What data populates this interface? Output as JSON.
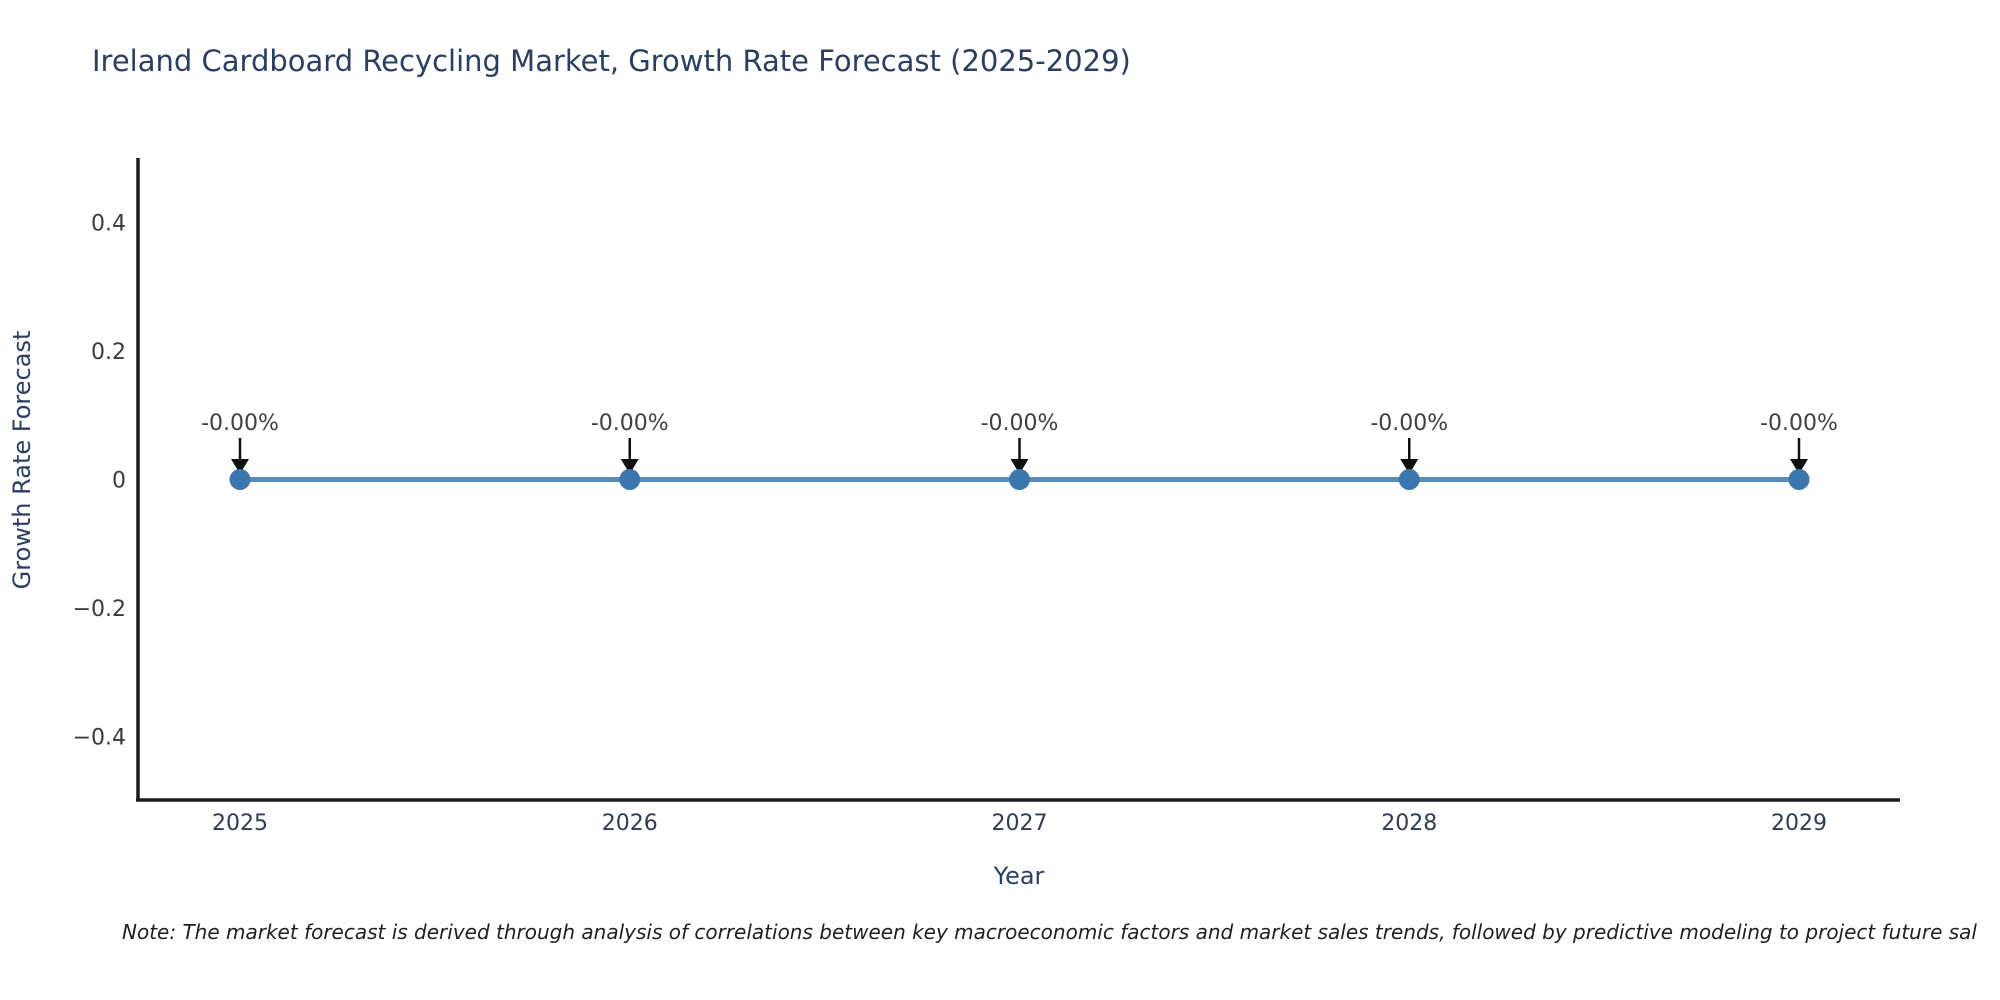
{
  "title": "Ireland Cardboard Recycling Market, Growth Rate Forecast (2025-2029)",
  "note": "Note: The market forecast is derived through analysis of correlations between key macroeconomic factors and market sales trends, followed by predictive modeling to project future sal",
  "chart_data": {
    "type": "line",
    "title": "Ireland Cardboard Recycling Market, Growth Rate Forecast (2025-2029)",
    "xlabel": "Year",
    "ylabel": "Growth Rate Forecast",
    "x": [
      2025,
      2026,
      2027,
      2028,
      2029
    ],
    "series": [
      {
        "name": "Growth Rate Forecast",
        "values": [
          0,
          0,
          0,
          0,
          0
        ],
        "point_labels": [
          "-0.00%",
          "-0.00%",
          "-0.00%",
          "-0.00%",
          "-0.00%"
        ]
      }
    ],
    "xtick_labels": [
      "2025",
      "2026",
      "2027",
      "2028",
      "2029"
    ],
    "ytick_values": [
      0.4,
      0.2,
      0,
      -0.2,
      -0.4
    ],
    "ytick_labels": [
      "0.4",
      "0.2",
      "0",
      "−0.2",
      "−0.4"
    ],
    "ylim": [
      -0.5,
      0.5
    ],
    "grid": false,
    "legend_position": "none",
    "colors": {
      "line": "#5b8cb8",
      "marker": "#3c76ae",
      "arrow": "#101010",
      "axis_line": "#1c1c1c",
      "title_text": "#2a3f5f",
      "axis_title_text": "#2a3f5f",
      "xtick_text": "#2e3d52",
      "ytick_text": "#3a3a3a",
      "annotation_text": "#404040",
      "background": "#ffffff"
    }
  }
}
